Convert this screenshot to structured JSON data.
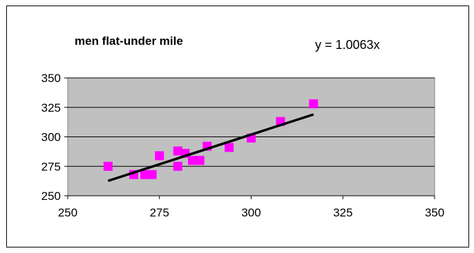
{
  "chart_data": {
    "type": "scatter",
    "title": "men flat-under mile",
    "annotation": "y = 1.0063x",
    "xlabel": "",
    "ylabel": "",
    "xlim": [
      250,
      350
    ],
    "ylim": [
      250,
      350
    ],
    "x_ticks": [
      250,
      275,
      300,
      325,
      350
    ],
    "y_ticks": [
      250,
      275,
      300,
      325,
      350
    ],
    "grid": "horizontal",
    "legend": "none",
    "series": [
      {
        "x": [
          261,
          268,
          271,
          273,
          275,
          280,
          280,
          282,
          284,
          286,
          288,
          294,
          300,
          308,
          317
        ],
        "y": [
          275,
          268,
          268,
          268,
          284,
          288,
          275,
          286,
          280,
          280,
          292,
          291,
          299,
          313,
          328
        ],
        "marker": "square",
        "color": "#ff00ff"
      }
    ],
    "trendline": {
      "slope": 1.0063,
      "intercept": 0,
      "x_range": [
        261,
        317
      ],
      "color": "#000000"
    },
    "plot_background": "#c0c0c0"
  }
}
